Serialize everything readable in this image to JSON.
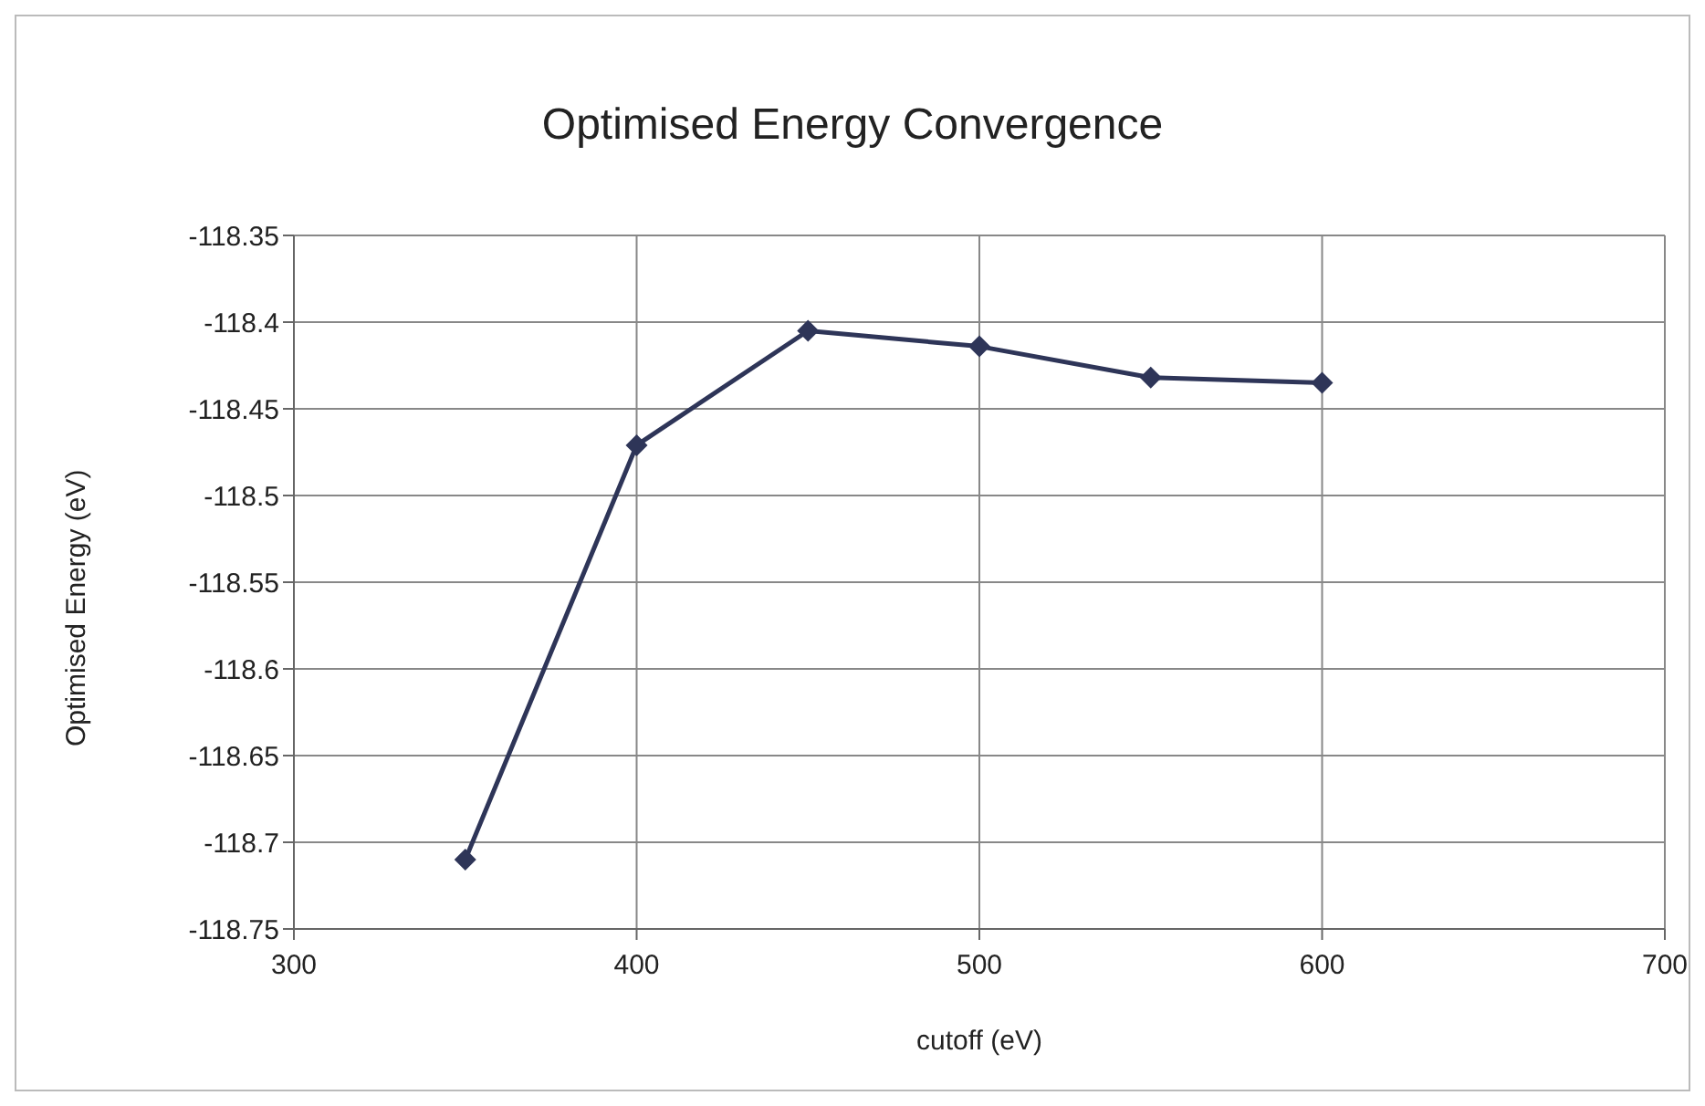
{
  "chart_data": {
    "type": "line",
    "title": "Optimised Energy Convergence",
    "xlabel": "cutoff (eV)",
    "ylabel": "Optimised Energy (eV)",
    "x": [
      350,
      400,
      450,
      500,
      550,
      600
    ],
    "series": [
      {
        "color": "#2e3558",
        "values": [
          -118.71,
          -118.471,
          -118.405,
          -118.414,
          -118.432,
          -118.435
        ]
      }
    ],
    "xlim": [
      300,
      700
    ],
    "xticks": [
      300,
      400,
      500,
      600,
      700
    ],
    "ylim": [
      -118.75,
      -118.35
    ],
    "yticks": [
      -118.75,
      -118.7,
      -118.65,
      -118.6,
      -118.55,
      -118.5,
      -118.45,
      -118.4,
      -118.35
    ],
    "grid": true,
    "marker": "diamond",
    "line_style": "solid"
  }
}
